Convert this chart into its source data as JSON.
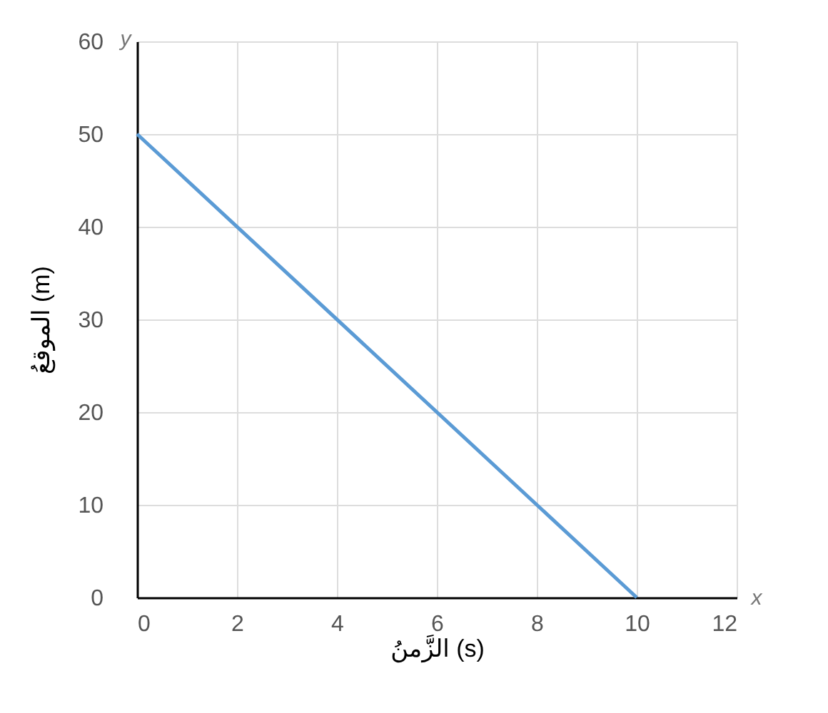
{
  "chart_data": {
    "type": "line",
    "xlabel": "الزَّمنُ (s)",
    "ylabel": "الموقعُ (m)",
    "x": [
      0,
      10
    ],
    "series": [
      {
        "color": "#5b9bd5",
        "values": [
          50,
          0
        ]
      }
    ],
    "xlim": [
      0,
      12
    ],
    "xticks": [
      0,
      2,
      4,
      6,
      8,
      10,
      12
    ],
    "ylim": [
      0,
      60
    ],
    "yticks": [
      0,
      10,
      20,
      30,
      40,
      50,
      60
    ],
    "grid": true,
    "marker": "none",
    "line_style": "solid",
    "annotations": [
      "y",
      "x"
    ]
  }
}
